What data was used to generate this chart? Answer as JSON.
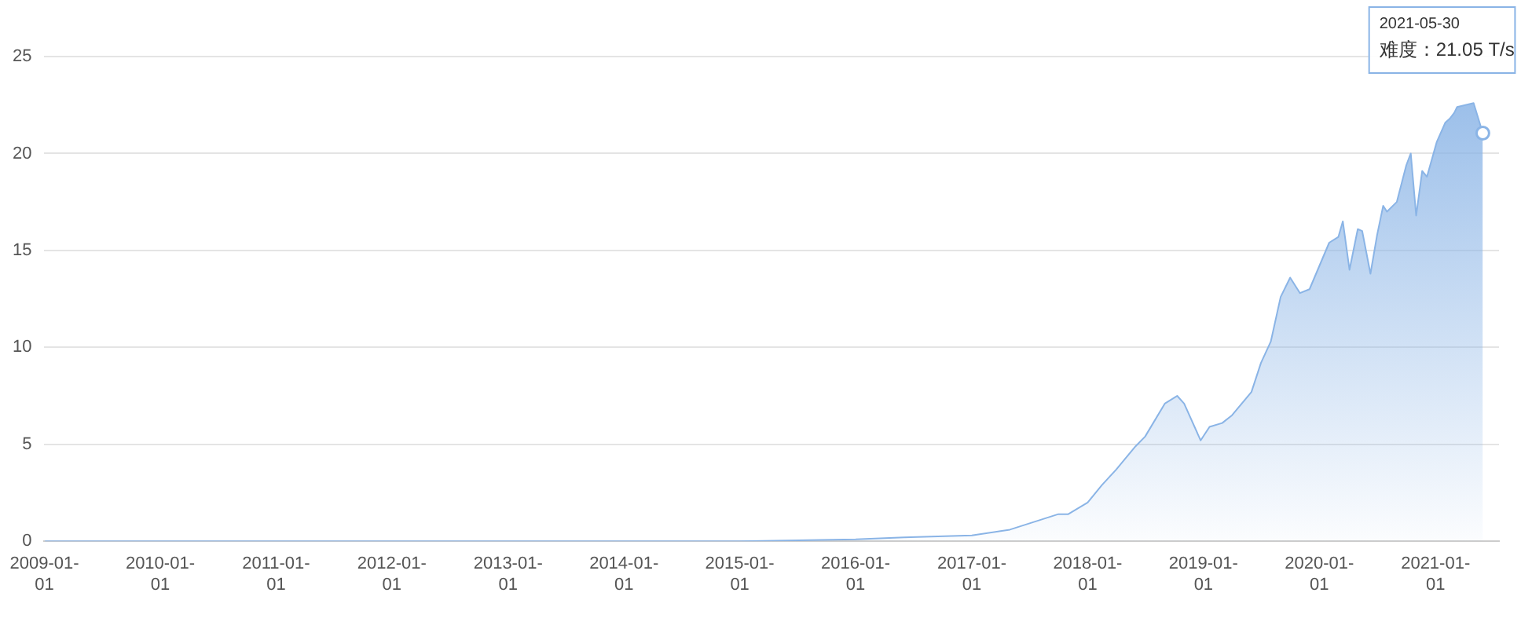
{
  "chart_data": {
    "type": "area",
    "x": [
      "2009-01-03",
      "2010-01-01",
      "2011-01-01",
      "2012-01-01",
      "2013-01-01",
      "2014-01-01",
      "2015-01-01",
      "2016-01-01",
      "2016-06-01",
      "2017-01-01",
      "2017-05-01",
      "2017-10-01",
      "2017-11-01",
      "2018-01-01",
      "2018-02-15",
      "2018-04-01",
      "2018-06-01",
      "2018-07-01",
      "2018-09-01",
      "2018-10-10",
      "2018-11-01",
      "2018-12-23",
      "2019-01-20",
      "2019-03-01",
      "2019-04-01",
      "2019-06-01",
      "2019-07-01",
      "2019-08-01",
      "2019-09-01",
      "2019-10-01",
      "2019-11-01",
      "2019-12-01",
      "2020-02-01",
      "2020-03-01",
      "2020-03-15",
      "2020-04-05",
      "2020-05-01",
      "2020-05-15",
      "2020-06-10",
      "2020-07-01",
      "2020-07-20",
      "2020-08-01",
      "2020-09-01",
      "2020-10-01",
      "2020-10-15",
      "2020-11-01",
      "2020-11-20",
      "2020-12-05",
      "2021-01-05",
      "2021-02-01",
      "2021-02-15",
      "2021-03-01",
      "2021-03-10",
      "2021-05-01",
      "2021-05-30"
    ],
    "series": [
      {
        "color": "#8ab4e6",
        "values": [
          0,
          0,
          0,
          0,
          0,
          0,
          0,
          0.1,
          0.2,
          0.3,
          0.6,
          1.4,
          1.4,
          2.0,
          2.9,
          3.7,
          4.9,
          5.4,
          7.1,
          7.5,
          7.1,
          5.2,
          5.9,
          6.1,
          6.5,
          7.7,
          9.2,
          10.3,
          12.6,
          13.6,
          12.8,
          13.0,
          15.4,
          15.7,
          16.5,
          14.0,
          16.1,
          16.0,
          13.8,
          15.8,
          17.3,
          17.0,
          17.5,
          19.4,
          20.0,
          16.8,
          19.1,
          18.8,
          20.6,
          21.6,
          21.8,
          22.1,
          22.4,
          22.6,
          21.05
        ]
      }
    ],
    "xlim": [
      "2009-01-01",
      "2021-07-20"
    ],
    "xticks": [
      "2009-01-01",
      "2010-01-01",
      "2011-01-01",
      "2012-01-01",
      "2013-01-01",
      "2014-01-01",
      "2015-01-01",
      "2016-01-01",
      "2017-01-01",
      "2018-01-01",
      "2019-01-01",
      "2020-01-01",
      "2021-01-01"
    ],
    "ylim": [
      0,
      25
    ],
    "yticks": [
      0,
      5,
      10,
      15,
      20,
      25
    ],
    "grid": "y",
    "legend": false,
    "marker": "none",
    "annotations": [
      "2021-05-30\n难度：21.05 T/s"
    ]
  }
}
